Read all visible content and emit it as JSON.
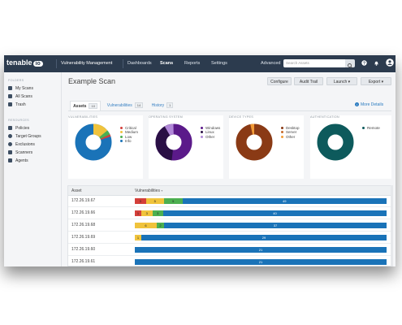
{
  "topbar": {
    "logo": "tenable",
    "logo_io": "io",
    "product": "Vulnerability Management",
    "nav": [
      "Dashboards",
      "Scans",
      "Reports",
      "Settings"
    ],
    "active_nav": "Scans",
    "advanced": "Advanced",
    "search_placeholder": "Search Assets",
    "icons": [
      "search-icon",
      "help-icon",
      "bell-icon",
      "user-icon"
    ]
  },
  "sidebar": {
    "folders_heading": "FOLDERS",
    "folders": [
      "My Scans",
      "All Scans",
      "Trash"
    ],
    "resources_heading": "RESOURCES",
    "resources": [
      "Policies",
      "Target Groups",
      "Exclusions",
      "Scanners",
      "Agents"
    ]
  },
  "page": {
    "title": "Example Scan",
    "buttons": {
      "configure": "Configure",
      "audit": "Audit Trail",
      "launch": "Launch",
      "export": "Export"
    },
    "tabs": [
      {
        "label": "Assets",
        "count": "10"
      },
      {
        "label": "Vulnerabilities",
        "count": "14"
      },
      {
        "label": "History",
        "count": "1"
      }
    ],
    "more_details": "More Details"
  },
  "colors": {
    "critical": "#d43f3a",
    "medium": "#f0c33c",
    "low": "#4caf50",
    "info": "#1a73b8",
    "windows": "#5b1a8a",
    "linux": "#2a0f45",
    "os_other": "#b188d8",
    "desktop": "#8a3a15",
    "dev_other": "#f29b36",
    "remote": "#0d5a5c"
  },
  "cards": [
    {
      "title": "VULNERABILITIES",
      "legend": [
        "Critical",
        "Medium",
        "Low",
        "Info"
      ]
    },
    {
      "title": "OPERATING SYSTEM",
      "legend": [
        "Windows",
        "Linux",
        "Other"
      ]
    },
    {
      "title": "DEVICE TYPES",
      "legend": [
        "Desktop",
        "Server",
        "Other"
      ]
    },
    {
      "title": "AUTHENTICATION",
      "legend": [
        "Remote"
      ]
    }
  ],
  "table": {
    "headers": [
      "Asset",
      "Vulnerabilities"
    ],
    "rows": [
      {
        "asset": "172.26.19.67",
        "counts": [
          {
            "c": "critical",
            "v": 3
          },
          {
            "c": "medium",
            "v": 5
          },
          {
            "c": "low",
            "v": 5
          },
          {
            "c": "info",
            "v": 49
          }
        ]
      },
      {
        "asset": "172.26.19.66",
        "counts": [
          {
            "c": "critical",
            "v": 1
          },
          {
            "c": "medium",
            "v": 3
          },
          {
            "c": "low",
            "v": 3
          },
          {
            "c": "info",
            "v": 40
          }
        ]
      },
      {
        "asset": "172.26.19.68",
        "counts": [
          {
            "c": "medium",
            "v": 6
          },
          {
            "c": "low",
            "v": 2
          },
          {
            "c": "info",
            "v": 37
          }
        ]
      },
      {
        "asset": "172.26.19.69",
        "counts": [
          {
            "c": "medium",
            "v": 1
          },
          {
            "c": "info",
            "v": 29
          }
        ]
      },
      {
        "asset": "172.26.19.60",
        "counts": [
          {
            "c": "info",
            "v": 21
          }
        ]
      },
      {
        "asset": "172.26.19.61",
        "counts": [
          {
            "c": "info",
            "v": 21
          }
        ]
      }
    ]
  }
}
